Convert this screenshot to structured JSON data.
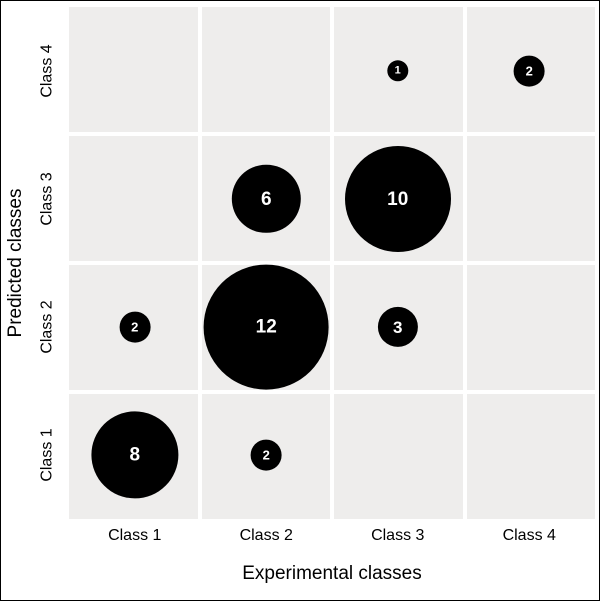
{
  "chart_data": {
    "type": "scatter",
    "subtype": "bubble_confusion_matrix",
    "xlabel": "Experimental classes",
    "ylabel": "Predicted classes",
    "x_categories": [
      "Class 1",
      "Class 2",
      "Class 3",
      "Class 4"
    ],
    "y_categories": [
      "Class 1",
      "Class 2",
      "Class 3",
      "Class 4"
    ],
    "points": [
      {
        "x": "Class 1",
        "y": "Class 1",
        "value": 8
      },
      {
        "x": "Class 2",
        "y": "Class 1",
        "value": 2
      },
      {
        "x": "Class 1",
        "y": "Class 2",
        "value": 2
      },
      {
        "x": "Class 2",
        "y": "Class 2",
        "value": 12
      },
      {
        "x": "Class 3",
        "y": "Class 2",
        "value": 3
      },
      {
        "x": "Class 2",
        "y": "Class 3",
        "value": 6
      },
      {
        "x": "Class 3",
        "y": "Class 3",
        "value": 10
      },
      {
        "x": "Class 3",
        "y": "Class 4",
        "value": 1
      },
      {
        "x": "Class 4",
        "y": "Class 4",
        "value": 2
      }
    ],
    "size_encoding": "bubble size proportional to value, value printed inside bubble",
    "legend": "none",
    "grid": "white lines between category cells",
    "colors": {
      "bubble": "#000000",
      "bubble_label": "#ffffff",
      "panel_cell": "#eeedec",
      "gridline": "#ffffff",
      "axis_text": "#000000",
      "background": "#ffffff",
      "frame_border": "#000000"
    }
  }
}
